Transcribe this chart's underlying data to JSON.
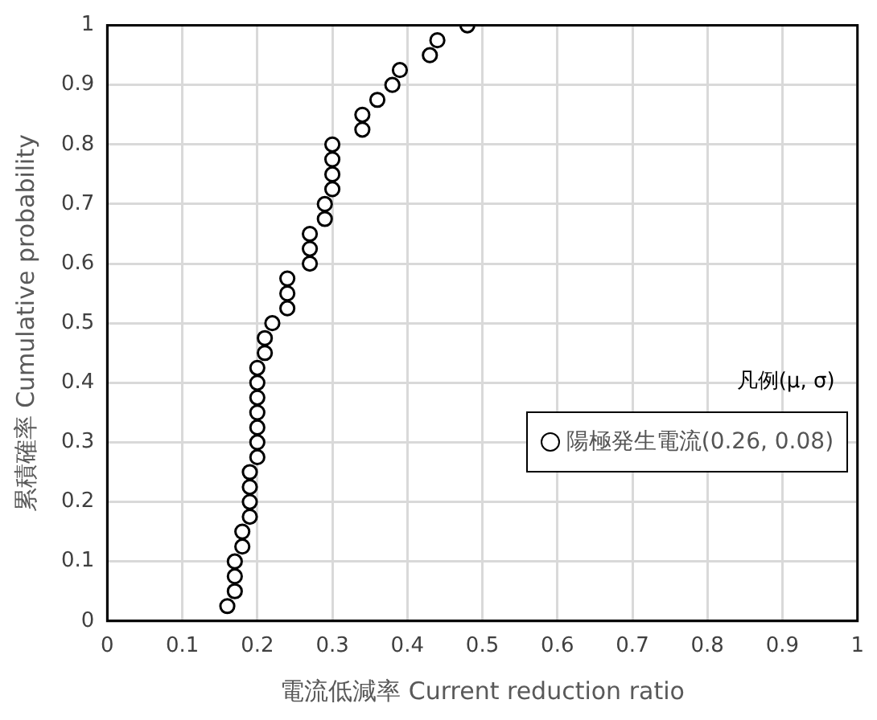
{
  "chart_data": {
    "type": "scatter",
    "xlabel": "電流低減率 Current reduction ratio",
    "ylabel": "累積確率 Cumulative probability",
    "legend_title": "凡例(μ, σ)",
    "legend": "right",
    "grid": true,
    "marker": "circle",
    "xlim": [
      0,
      1
    ],
    "xticks": [
      0,
      0.1,
      0.2,
      0.3,
      0.4,
      0.5,
      0.6,
      0.7,
      0.8,
      0.9,
      1
    ],
    "ylim": [
      0,
      1
    ],
    "yticks": [
      0,
      0.1,
      0.2,
      0.3,
      0.4,
      0.5,
      0.6,
      0.7,
      0.8,
      0.9,
      1
    ],
    "series": [
      {
        "name": "陽極発生電流(0.26, 0.08)",
        "color": "#000000",
        "x": [
          0.16,
          0.17,
          0.17,
          0.17,
          0.18,
          0.18,
          0.19,
          0.19,
          0.19,
          0.19,
          0.2,
          0.2,
          0.2,
          0.2,
          0.2,
          0.2,
          0.2,
          0.21,
          0.21,
          0.22,
          0.24,
          0.24,
          0.24,
          0.27,
          0.27,
          0.27,
          0.29,
          0.29,
          0.3,
          0.3,
          0.3,
          0.3,
          0.34,
          0.34,
          0.36,
          0.38,
          0.39,
          0.43,
          0.44,
          0.48
        ],
        "values": [
          0.025,
          0.05,
          0.075,
          0.1,
          0.125,
          0.15,
          0.175,
          0.2,
          0.225,
          0.25,
          0.275,
          0.3,
          0.325,
          0.35,
          0.375,
          0.4,
          0.425,
          0.45,
          0.475,
          0.5,
          0.525,
          0.55,
          0.575,
          0.6,
          0.625,
          0.65,
          0.675,
          0.7,
          0.725,
          0.75,
          0.775,
          0.8,
          0.825,
          0.85,
          0.875,
          0.9,
          0.925,
          0.95,
          0.975,
          1
        ]
      }
    ]
  }
}
